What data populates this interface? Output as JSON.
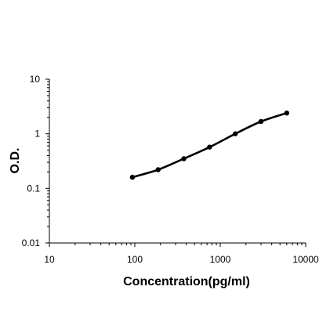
{
  "chart_data": {
    "type": "line",
    "title": "",
    "xlabel": "Concentration(pg/ml)",
    "ylabel": "O.D.",
    "x_scale": "log",
    "y_scale": "log",
    "xlim": [
      10,
      10000
    ],
    "ylim": [
      0.01,
      10
    ],
    "x_ticks": [
      "10",
      "100",
      "1000",
      "10000"
    ],
    "y_ticks": [
      "0.01",
      "0.1",
      "1",
      "10"
    ],
    "grid": false,
    "legend": "none",
    "line_color": "#000000",
    "series": [
      {
        "x": [
          93.75,
          187.5,
          375,
          750,
          1500,
          3000,
          6000
        ],
        "y": [
          0.16,
          0.22,
          0.35,
          0.57,
          1.0,
          1.68,
          2.4
        ]
      }
    ]
  }
}
